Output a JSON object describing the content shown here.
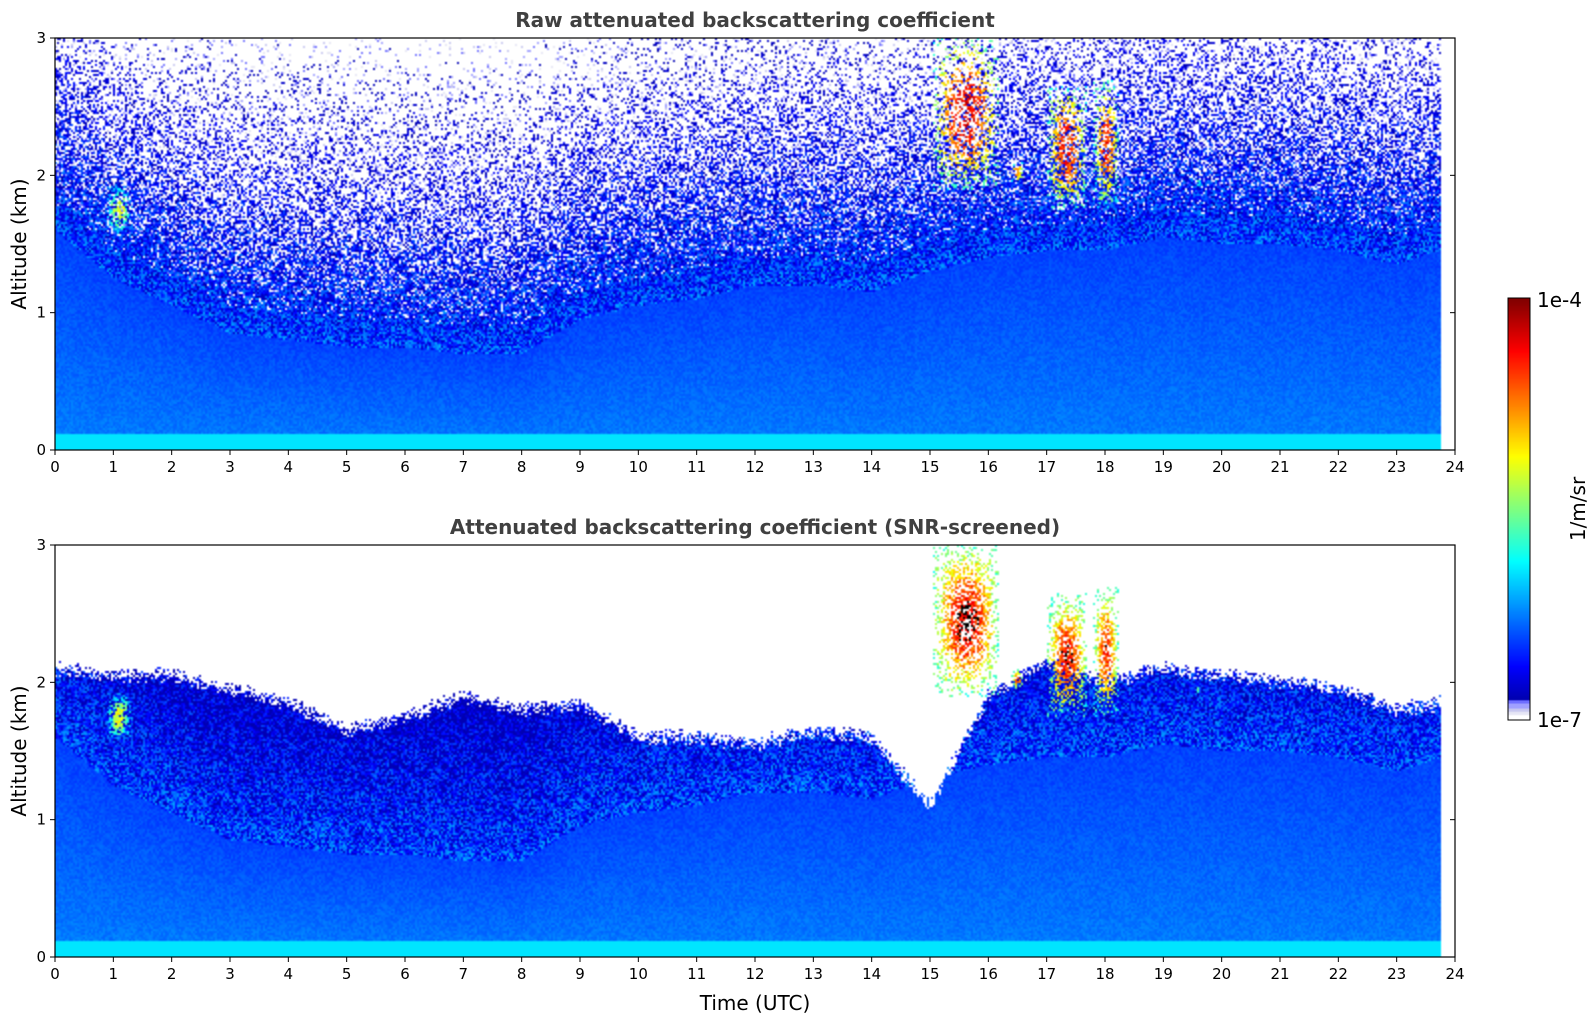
{
  "chart_data": [
    {
      "type": "heatmap",
      "title": "Raw attenuated backscattering coefficient",
      "xlabel": "",
      "ylabel": "Altitude (km)",
      "xlim": [
        0,
        24
      ],
      "ylim": [
        0,
        3
      ],
      "x_ticks": [
        "0",
        "1",
        "2",
        "3",
        "4",
        "5",
        "6",
        "7",
        "8",
        "9",
        "10",
        "11",
        "12",
        "13",
        "14",
        "15",
        "16",
        "17",
        "18",
        "19",
        "20",
        "21",
        "22",
        "23",
        "24"
      ],
      "y_ticks": [
        "0",
        "1",
        "2",
        "3"
      ],
      "data_end_time": 23.75,
      "screened": false,
      "features": {
        "boundary_layer_top_km": [
          [
            0,
            1.6
          ],
          [
            1,
            1.25
          ],
          [
            2,
            1.05
          ],
          [
            3,
            0.85
          ],
          [
            4,
            0.8
          ],
          [
            5,
            0.75
          ],
          [
            6,
            0.75
          ],
          [
            7,
            0.7
          ],
          [
            8,
            0.7
          ],
          [
            9,
            0.95
          ],
          [
            10,
            1.05
          ],
          [
            11,
            1.1
          ],
          [
            12,
            1.2
          ],
          [
            13,
            1.2
          ],
          [
            14,
            1.15
          ],
          [
            15,
            1.3
          ],
          [
            16,
            1.4
          ],
          [
            17,
            1.45
          ],
          [
            18,
            1.45
          ],
          [
            19,
            1.55
          ],
          [
            20,
            1.5
          ],
          [
            21,
            1.5
          ],
          [
            22,
            1.45
          ],
          [
            23,
            1.35
          ],
          [
            23.75,
            1.45
          ]
        ],
        "clouds": [
          {
            "t0": 0.85,
            "t1": 1.35,
            "z0": 1.55,
            "z1": 1.95,
            "peak_log10": -5.2
          },
          {
            "t0": 15.05,
            "t1": 16.2,
            "z0": 1.9,
            "z1": 3.0,
            "peak_log10": -4.3
          },
          {
            "t0": 16.4,
            "t1": 16.6,
            "z0": 1.95,
            "z1": 2.1,
            "peak_log10": -4.6
          },
          {
            "t0": 17.0,
            "t1": 17.7,
            "z0": 1.75,
            "z1": 2.65,
            "peak_log10": -4.4
          },
          {
            "t0": 17.8,
            "t1": 18.25,
            "z0": 1.75,
            "z1": 2.7,
            "peak_log10": -4.5
          },
          {
            "t0": 19.55,
            "t1": 19.65,
            "z0": 1.9,
            "z1": 2.0,
            "peak_log10": -5.6
          }
        ]
      }
    },
    {
      "type": "heatmap",
      "title": "Attenuated backscattering coefficient (SNR-screened)",
      "xlabel": "Time (UTC)",
      "ylabel": "Altitude (km)",
      "xlim": [
        0,
        24
      ],
      "ylim": [
        0,
        3
      ],
      "x_ticks": [
        "0",
        "1",
        "2",
        "3",
        "4",
        "5",
        "6",
        "7",
        "8",
        "9",
        "10",
        "11",
        "12",
        "13",
        "14",
        "15",
        "16",
        "17",
        "18",
        "19",
        "20",
        "21",
        "22",
        "23",
        "24"
      ],
      "y_ticks": [
        "0",
        "1",
        "2",
        "3"
      ],
      "data_end_time": 23.75,
      "screened": true,
      "features": {
        "screen_top_km": [
          [
            0,
            2.1
          ],
          [
            1,
            2.05
          ],
          [
            2,
            2.05
          ],
          [
            3,
            1.95
          ],
          [
            4,
            1.85
          ],
          [
            5,
            1.65
          ],
          [
            6,
            1.75
          ],
          [
            7,
            1.9
          ],
          [
            8,
            1.8
          ],
          [
            9,
            1.85
          ],
          [
            10,
            1.6
          ],
          [
            11,
            1.6
          ],
          [
            12,
            1.55
          ],
          [
            13,
            1.65
          ],
          [
            14,
            1.6
          ],
          [
            15,
            1.1
          ],
          [
            16,
            1.9
          ],
          [
            17,
            2.15
          ],
          [
            18,
            2.0
          ],
          [
            19,
            2.1
          ],
          [
            20,
            2.05
          ],
          [
            21,
            2.0
          ],
          [
            22,
            1.95
          ],
          [
            23,
            1.8
          ],
          [
            23.75,
            1.85
          ]
        ]
      }
    }
  ],
  "colorbar": {
    "label": "1/m/sr",
    "max_label": "1e-4",
    "min_label": "1e-7",
    "vmin_log10": -7,
    "vmax_log10": -4,
    "colormap": "jet",
    "low_end_colors": [
      "#ffffff",
      "#e6e6f5",
      "#c8c8f0",
      "#a0a0ff",
      "#6e6eff"
    ]
  }
}
